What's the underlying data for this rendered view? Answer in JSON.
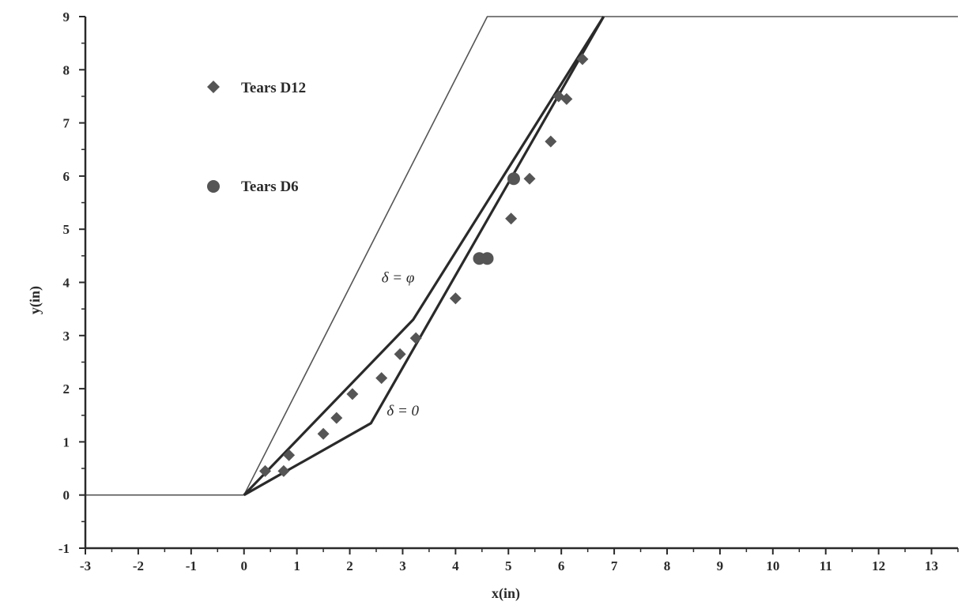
{
  "chart_data": {
    "type": "scatter",
    "title": "",
    "xlabel": "x(in)",
    "ylabel": "y(in)",
    "xlim": [
      -3,
      13.5
    ],
    "ylim": [
      -1,
      9
    ],
    "xticks": [
      -3,
      -2,
      -1,
      0,
      1,
      2,
      3,
      4,
      5,
      6,
      7,
      8,
      9,
      10,
      11,
      12,
      13
    ],
    "xtick_labels": [
      "-3",
      "-2",
      "-1",
      "0",
      "1",
      "2",
      "3",
      "4",
      "5",
      "6",
      "7",
      "8",
      "9",
      "10",
      "11",
      "12",
      "13"
    ],
    "yticks": [
      -1,
      0,
      1,
      2,
      3,
      4,
      5,
      6,
      7,
      8,
      9
    ],
    "ytick_labels": [
      "-1",
      "0",
      "1",
      "2",
      "3",
      "4",
      "5",
      "6",
      "7",
      "8",
      "9"
    ],
    "grid": false,
    "legend_position": "top-left",
    "colors": {
      "axis": "#2a2a2a",
      "thin_line": "#555555",
      "thick_line": "#2a2a2a",
      "marker": "#555555"
    },
    "lines": [
      {
        "style": "thin",
        "points": [
          [
            -3,
            0
          ],
          [
            0,
            0
          ],
          [
            4.6,
            9
          ],
          [
            13.5,
            9
          ]
        ]
      },
      {
        "style": "thick",
        "label": "δ = φ",
        "points": [
          [
            0,
            0
          ],
          [
            3.2,
            3.3
          ],
          [
            6.8,
            9
          ]
        ]
      },
      {
        "style": "thick",
        "label": "δ = 0",
        "points": [
          [
            0,
            0
          ],
          [
            2.4,
            1.35
          ],
          [
            6.8,
            9
          ]
        ]
      }
    ],
    "series": [
      {
        "name": "Tears D12",
        "marker": "diamond",
        "points": [
          [
            0.4,
            0.45
          ],
          [
            0.75,
            0.45
          ],
          [
            0.85,
            0.75
          ],
          [
            1.5,
            1.15
          ],
          [
            1.75,
            1.45
          ],
          [
            2.05,
            1.9
          ],
          [
            2.6,
            2.2
          ],
          [
            2.95,
            2.65
          ],
          [
            3.25,
            2.95
          ],
          [
            4.0,
            3.7
          ],
          [
            5.05,
            5.2
          ],
          [
            5.4,
            5.95
          ],
          [
            5.8,
            6.65
          ],
          [
            5.95,
            7.5
          ],
          [
            6.1,
            7.45
          ],
          [
            6.4,
            8.2
          ]
        ]
      },
      {
        "name": "Tears D6",
        "marker": "circle",
        "points": [
          [
            4.45,
            4.45
          ],
          [
            4.6,
            4.45
          ],
          [
            5.1,
            5.95
          ]
        ]
      }
    ],
    "annotations": [
      {
        "text": "δ = φ",
        "x": 2.6,
        "y": 4.0
      },
      {
        "text": "δ = 0",
        "x": 2.7,
        "y": 1.5
      }
    ]
  }
}
